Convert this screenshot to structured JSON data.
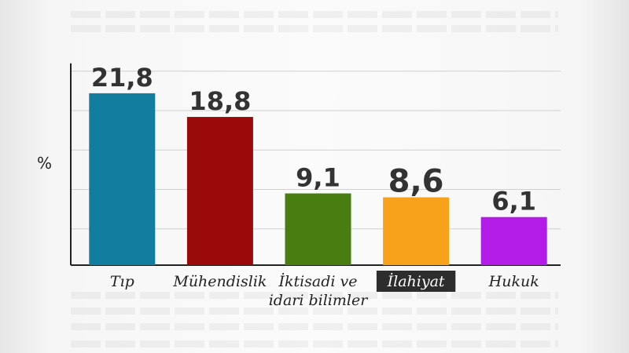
{
  "chart_data": {
    "type": "bar",
    "categories": [
      "Tıp",
      "Mühendislik",
      "İktisadi ve idari bilimler",
      "İlahiyat",
      "Hukuk"
    ],
    "category_lines": [
      [
        "Tıp"
      ],
      [
        "Mühendislik"
      ],
      [
        "İktisadi ve",
        "idari bilimler"
      ],
      [
        "İlahiyat"
      ],
      [
        "Hukuk"
      ]
    ],
    "values": [
      21.8,
      18.8,
      9.1,
      8.6,
      6.1
    ],
    "value_labels": [
      "21,8",
      "18,8",
      "9,1",
      "8,6",
      "6,1"
    ],
    "colors": [
      "#137da0",
      "#9a0a0a",
      "#4a7d11",
      "#f8a21c",
      "#b31ce6"
    ],
    "highlighted_category": "İlahiyat",
    "highlighted_value": "8,6",
    "title": "",
    "xlabel": "",
    "ylabel": "%",
    "ylim": [
      0,
      25
    ],
    "grid": true,
    "legend": "none"
  }
}
